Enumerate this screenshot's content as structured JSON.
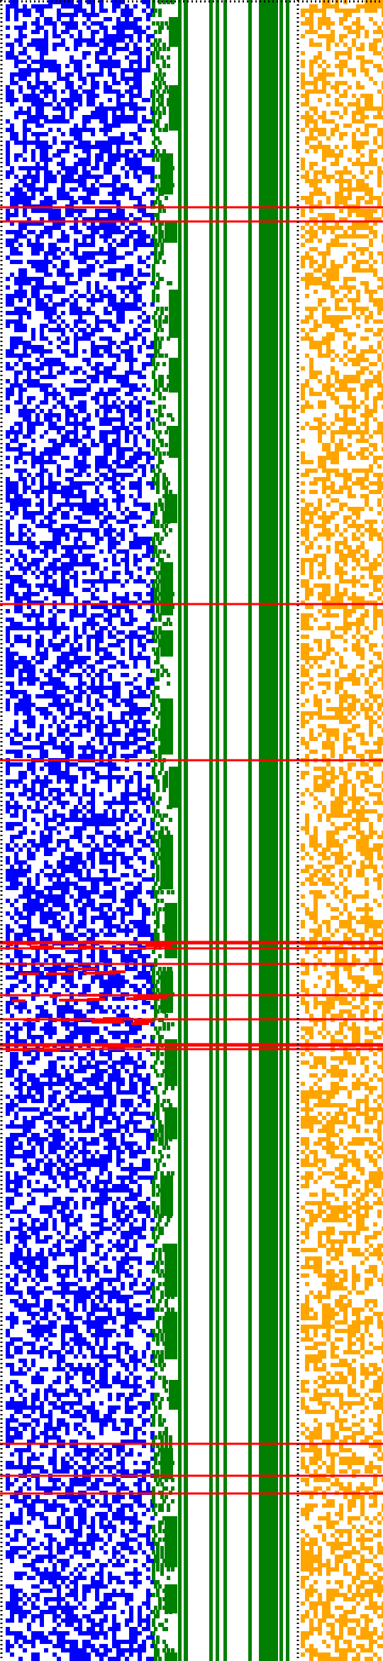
{
  "colors": {
    "background": "#ffffff",
    "left_pattern": "#0000ff",
    "middle_bars": "#008000",
    "right_pattern": "#ffa500",
    "separator_lines": "#ff0000",
    "border_dots": "#000000"
  },
  "regions": [
    {
      "name": "blue-noise-panel",
      "color": "left_pattern"
    },
    {
      "name": "green-bar-panel",
      "color": "middle_bars"
    },
    {
      "name": "orange-noise-panel",
      "color": "right_pattern"
    }
  ],
  "separator_count": 18
}
